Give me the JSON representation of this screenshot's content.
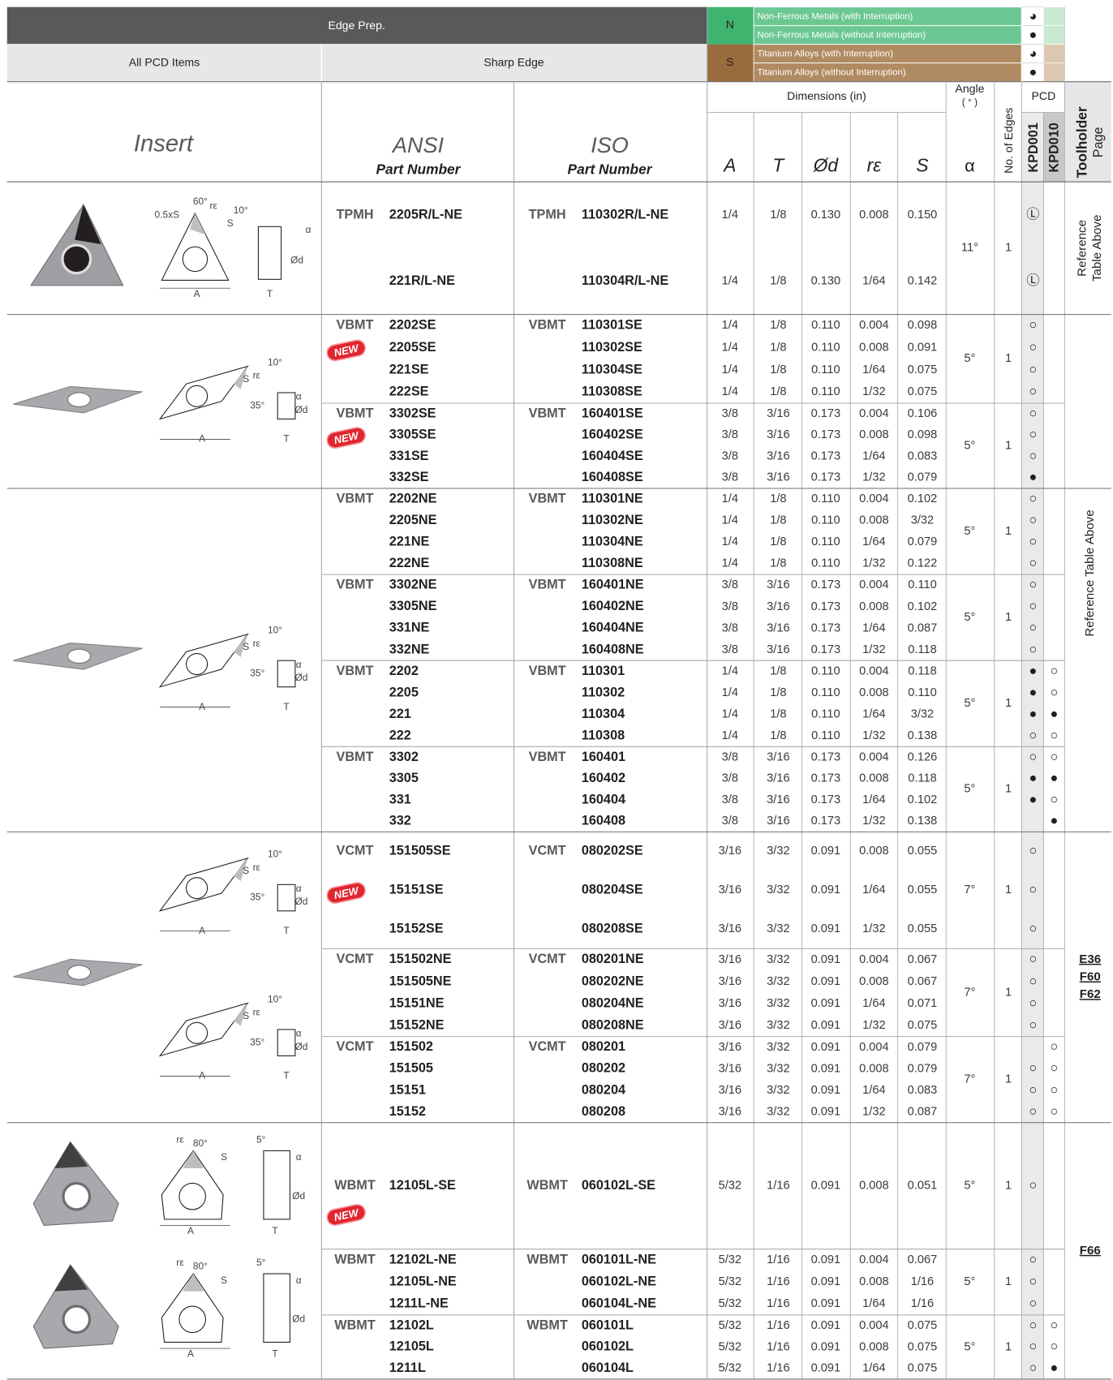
{
  "header": {
    "edge_prep": "Edge Prep.",
    "all_pcd": "All PCD Items",
    "sharp_edge": "Sharp Edge",
    "materials": [
      {
        "code": "N",
        "rows": [
          {
            "text": "Non-Ferrous Metals (with Interruption)",
            "kpd001": "◕"
          },
          {
            "text": "Non-Ferrous Metals (without Interruption)",
            "kpd001": "●"
          }
        ]
      },
      {
        "code": "S",
        "rows": [
          {
            "text": "Titanium Alloys (with Interruption)",
            "kpd001": "◕"
          },
          {
            "text": "Titanium Alloys (without Interruption)",
            "kpd001": "●"
          }
        ]
      }
    ]
  },
  "columns": {
    "insert": "Insert",
    "ansi": "ANSI",
    "ansi_sub": "Part Number",
    "iso": "ISO",
    "iso_sub": "Part Number",
    "dimensions": "Dimensions (in)",
    "angle": "Angle",
    "angle_unit": "( ° )",
    "pcd": "PCD",
    "dims": [
      "A",
      "T",
      "Ød",
      "rε",
      "S"
    ],
    "alpha": "α",
    "edges": "No. of Edges",
    "grades": [
      "KPD001",
      "KPD010"
    ],
    "toolholder": "Toolholder",
    "page": "Page"
  },
  "sections": [
    {
      "insert_shape": "triangle",
      "diagrams": [
        {
          "shape": "triangle",
          "labels": [
            "60°",
            "0.5xS",
            "rε",
            "S",
            "10°",
            "α",
            "Ød",
            "A",
            "T"
          ]
        }
      ],
      "groups": [
        {
          "angle": "11°",
          "edges": "1",
          "rows": [
            [
              "TPMH",
              "2205R/L-NE",
              "TPMH",
              "110302R/L-NE",
              "1/4",
              "1/8",
              "0.130",
              "0.008",
              "0.150",
              "Ⓛ",
              null,
              null
            ],
            [
              null,
              "221R/L-NE",
              null,
              "110304R/L-NE",
              "1/4",
              "1/8",
              "0.130",
              "1/64",
              "0.142",
              "Ⓛ",
              null,
              null
            ]
          ]
        }
      ]
    },
    {
      "insert_shape": "rhombus",
      "diagrams": [
        {
          "shape": "rhombus",
          "labels": [
            "10°",
            "S",
            "rε",
            "35°",
            "α",
            "Ød",
            "A",
            "T"
          ]
        }
      ],
      "groups": [
        {
          "angle": "5°",
          "edges": "1",
          "rows": [
            [
              "VBMT",
              "2202SE",
              "VBMT",
              "110301SE",
              "1/4",
              "1/8",
              "0.110",
              "0.004",
              "0.098",
              "○",
              null,
              null
            ],
            [
              null,
              "2205SE",
              null,
              "110302SE",
              "1/4",
              "1/8",
              "0.110",
              "0.008",
              "0.091",
              "○",
              null,
              "NEW"
            ],
            [
              null,
              "221SE",
              null,
              "110304SE",
              "1/4",
              "1/8",
              "0.110",
              "1/64",
              "0.075",
              "○",
              null,
              null
            ],
            [
              null,
              "222SE",
              null,
              "110308SE",
              "1/4",
              "1/8",
              "0.110",
              "1/32",
              "0.075",
              "○",
              null,
              null
            ]
          ]
        },
        {
          "angle": "5°",
          "edges": "1",
          "rows": [
            [
              "VBMT",
              "3302SE",
              "VBMT",
              "160401SE",
              "3/8",
              "3/16",
              "0.173",
              "0.004",
              "0.106",
              "○",
              null,
              null
            ],
            [
              null,
              "3305SE",
              null,
              "160402SE",
              "3/8",
              "3/16",
              "0.173",
              "0.008",
              "0.098",
              "○",
              null,
              "NEW"
            ],
            [
              null,
              "331SE",
              null,
              "160404SE",
              "3/8",
              "3/16",
              "0.173",
              "1/64",
              "0.083",
              "○",
              null,
              null
            ],
            [
              null,
              "332SE",
              null,
              "160408SE",
              "3/8",
              "3/16",
              "0.173",
              "1/32",
              "0.079",
              "●",
              null,
              null
            ]
          ]
        }
      ]
    },
    {
      "insert_shape": "rhombus",
      "diagrams": [
        {
          "shape": "rhombus",
          "labels": [
            "10°",
            "S",
            "rε",
            "35°",
            "α",
            "Ød",
            "A",
            "T"
          ]
        }
      ],
      "groups": [
        {
          "angle": "5°",
          "edges": "1",
          "rows": [
            [
              "VBMT",
              "2202NE",
              "VBMT",
              "110301NE",
              "1/4",
              "1/8",
              "0.110",
              "0.004",
              "0.102",
              "○",
              null,
              null
            ],
            [
              null,
              "2205NE",
              null,
              "110302NE",
              "1/4",
              "1/8",
              "0.110",
              "0.008",
              "3/32",
              "○",
              null,
              null
            ],
            [
              null,
              "221NE",
              null,
              "110304NE",
              "1/4",
              "1/8",
              "0.110",
              "1/64",
              "0.079",
              "○",
              null,
              null
            ],
            [
              null,
              "222NE",
              null,
              "110308NE",
              "1/4",
              "1/8",
              "0.110",
              "1/32",
              "0.122",
              "○",
              null,
              null
            ]
          ]
        },
        {
          "angle": "5°",
          "edges": "1",
          "rows": [
            [
              "VBMT",
              "3302NE",
              "VBMT",
              "160401NE",
              "3/8",
              "3/16",
              "0.173",
              "0.004",
              "0.110",
              "○",
              null,
              null
            ],
            [
              null,
              "3305NE",
              null,
              "160402NE",
              "3/8",
              "3/16",
              "0.173",
              "0.008",
              "0.102",
              "○",
              null,
              null
            ],
            [
              null,
              "331NE",
              null,
              "160404NE",
              "3/8",
              "3/16",
              "0.173",
              "1/64",
              "0.087",
              "○",
              null,
              null
            ],
            [
              null,
              "332NE",
              null,
              "160408NE",
              "3/8",
              "3/16",
              "0.173",
              "1/32",
              "0.118",
              "○",
              null,
              null
            ]
          ]
        },
        {
          "angle": "5°",
          "edges": "1",
          "rows": [
            [
              "VBMT",
              "2202",
              "VBMT",
              "110301",
              "1/4",
              "1/8",
              "0.110",
              "0.004",
              "0.118",
              "●",
              "○",
              null
            ],
            [
              null,
              "2205",
              null,
              "110302",
              "1/4",
              "1/8",
              "0.110",
              "0.008",
              "0.110",
              "●",
              "○",
              null
            ],
            [
              null,
              "221",
              null,
              "110304",
              "1/4",
              "1/8",
              "0.110",
              "1/64",
              "3/32",
              "●",
              "●",
              null
            ],
            [
              null,
              "222",
              null,
              "110308",
              "1/4",
              "1/8",
              "0.110",
              "1/32",
              "0.138",
              "○",
              "○",
              null
            ]
          ]
        },
        {
          "angle": "5°",
          "edges": "1",
          "rows": [
            [
              "VBMT",
              "3302",
              "VBMT",
              "160401",
              "3/8",
              "3/16",
              "0.173",
              "0.004",
              "0.126",
              "○",
              "○",
              null
            ],
            [
              null,
              "3305",
              null,
              "160402",
              "3/8",
              "3/16",
              "0.173",
              "0.008",
              "0.118",
              "●",
              "●",
              null
            ],
            [
              null,
              "331",
              null,
              "160404",
              "3/8",
              "3/16",
              "0.173",
              "1/64",
              "0.102",
              "●",
              "○",
              null
            ],
            [
              null,
              "332",
              null,
              "160408",
              "3/8",
              "3/16",
              "0.173",
              "1/32",
              "0.138",
              null,
              "●",
              null
            ]
          ]
        }
      ]
    },
    {
      "insert_shape": "rhombus",
      "diagrams": [
        {
          "shape": "rhombus",
          "labels": [
            "10°",
            "S",
            "rε",
            "35°",
            "α",
            "Ød",
            "A",
            "T"
          ]
        },
        {
          "shape": "rhombus",
          "labels": [
            "10°",
            "S",
            "rε",
            "35°",
            "α",
            "Ød",
            "A",
            "T"
          ]
        }
      ],
      "groups": [
        {
          "angle": "7°",
          "edges": "1",
          "rows": [
            [
              "VCMT",
              "151505SE",
              "VCMT",
              "080202SE",
              "3/16",
              "3/32",
              "0.091",
              "0.008",
              "0.055",
              "○",
              null,
              null
            ],
            [
              null,
              "15151SE",
              null,
              "080204SE",
              "3/16",
              "3/32",
              "0.091",
              "1/64",
              "0.055",
              "○",
              null,
              "NEW"
            ],
            [
              null,
              "15152SE",
              null,
              "080208SE",
              "3/16",
              "3/32",
              "0.091",
              "1/32",
              "0.055",
              "○",
              null,
              null
            ]
          ]
        },
        {
          "angle": "7°",
          "edges": "1",
          "rows": [
            [
              "VCMT",
              "151502NE",
              "VCMT",
              "080201NE",
              "3/16",
              "3/32",
              "0.091",
              "0.004",
              "0.067",
              "○",
              null,
              null
            ],
            [
              null,
              "151505NE",
              null,
              "080202NE",
              "3/16",
              "3/32",
              "0.091",
              "0.008",
              "0.067",
              "○",
              null,
              null
            ],
            [
              null,
              "15151NE",
              null,
              "080204NE",
              "3/16",
              "3/32",
              "0.091",
              "1/64",
              "0.071",
              "○",
              null,
              null
            ],
            [
              null,
              "15152NE",
              null,
              "080208NE",
              "3/16",
              "3/32",
              "0.091",
              "1/32",
              "0.075",
              "○",
              null,
              null
            ]
          ]
        },
        {
          "angle": "7°",
          "edges": "1",
          "rows": [
            [
              "VCMT",
              "151502",
              "VCMT",
              "080201",
              "3/16",
              "3/32",
              "0.091",
              "0.004",
              "0.079",
              null,
              "○",
              null
            ],
            [
              null,
              "151505",
              null,
              "080202",
              "3/16",
              "3/32",
              "0.091",
              "0.008",
              "0.079",
              "○",
              "○",
              null
            ],
            [
              null,
              "15151",
              null,
              "080204",
              "3/16",
              "3/32",
              "0.091",
              "1/64",
              "0.083",
              "○",
              "○",
              null
            ],
            [
              null,
              "15152",
              null,
              "080208",
              "3/16",
              "3/32",
              "0.091",
              "1/32",
              "0.087",
              "○",
              "○",
              null
            ]
          ]
        }
      ]
    },
    {
      "insert_shape": "trigon",
      "diagrams": [
        {
          "shape": "trigon",
          "labels": [
            "80°",
            "rε",
            "S",
            "5°",
            "α",
            "Ød",
            "A",
            "T"
          ]
        },
        {
          "shape": "trigon",
          "labels": [
            "80°",
            "rε",
            "S",
            "5°",
            "α",
            "Ød",
            "A",
            "T"
          ]
        }
      ],
      "groups": [
        {
          "angle": "5°",
          "edges": "1",
          "rows": [
            [
              "WBMT",
              "12105L-SE",
              "WBMT",
              "060102L-SE",
              "5/32",
              "1/16",
              "0.091",
              "0.008",
              "0.051",
              "○",
              null,
              "NEW"
            ]
          ]
        },
        {
          "angle": "5°",
          "edges": "1",
          "rows": [
            [
              "WBMT",
              "12102L-NE",
              "WBMT",
              "060101L-NE",
              "5/32",
              "1/16",
              "0.091",
              "0.004",
              "0.067",
              "○",
              null,
              null
            ],
            [
              null,
              "12105L-NE",
              null,
              "060102L-NE",
              "5/32",
              "1/16",
              "0.091",
              "0.008",
              "1/16",
              "○",
              null,
              null
            ],
            [
              null,
              "1211L-NE",
              null,
              "060104L-NE",
              "5/32",
              "1/16",
              "0.091",
              "1/64",
              "1/16",
              "○",
              null,
              null
            ]
          ]
        },
        {
          "angle": "5°",
          "edges": "1",
          "rows": [
            [
              "WBMT",
              "12102L",
              "WBMT",
              "060101L",
              "5/32",
              "1/16",
              "0.091",
              "0.004",
              "0.075",
              "○",
              "○",
              null
            ],
            [
              null,
              "12105L",
              null,
              "060102L",
              "5/32",
              "1/16",
              "0.091",
              "0.008",
              "0.075",
              "○",
              "○",
              null
            ],
            [
              null,
              "1211L",
              null,
              "060104L",
              "5/32",
              "1/16",
              "0.091",
              "1/64",
              "0.075",
              "○",
              "●",
              null
            ]
          ]
        }
      ]
    }
  ],
  "toolholder_pages": [
    {
      "text": [
        "Reference",
        "Table Above"
      ]
    },
    {
      "text": [
        "Reference Table Above"
      ]
    },
    {
      "text": [
        "E36",
        "F60",
        "F62"
      ]
    },
    {
      "text": [
        "F66"
      ]
    }
  ]
}
